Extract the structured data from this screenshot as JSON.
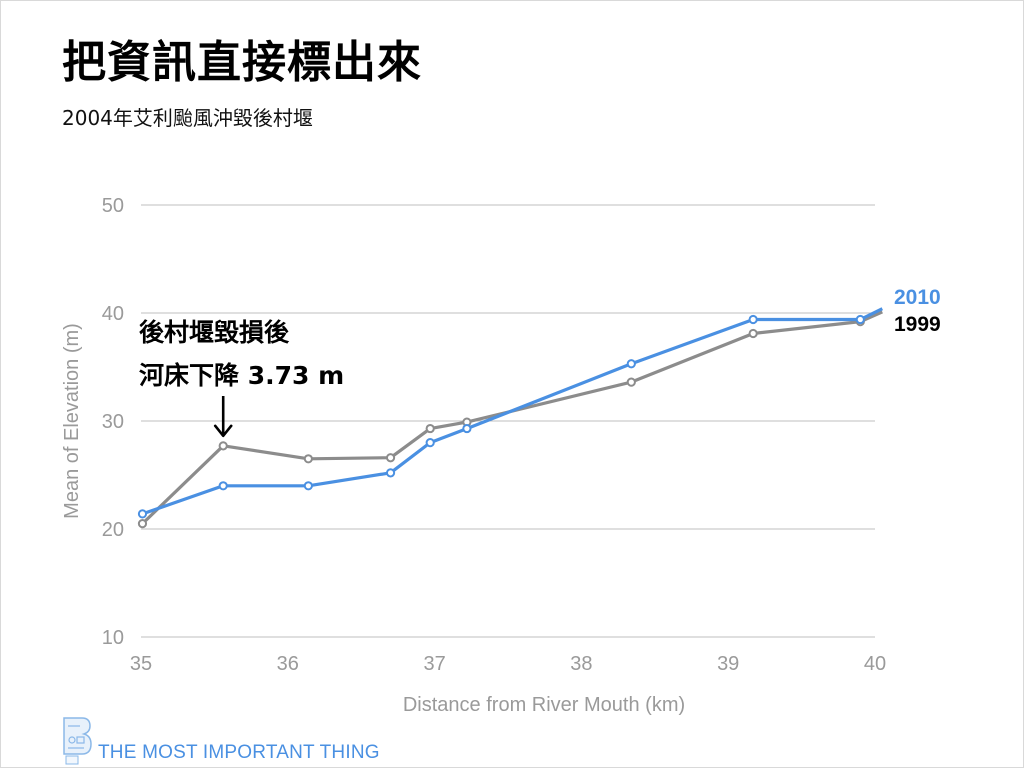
{
  "slide": {
    "title": "把資訊直接標出來",
    "subtitle": "2004年艾利颱風沖毀後村堰",
    "footer": "THE MOST IMPORTANT THING"
  },
  "colors": {
    "series_2010": "#4a90e2",
    "series_1999": "#8c8c8c",
    "gridline": "#bfbfbf",
    "axis_text": "#9a9a9a"
  },
  "chart_data": {
    "type": "line",
    "xlabel": "Distance from River Mouth (km)",
    "ylabel": "Mean of Elevation (m)",
    "xlim": [
      35,
      40
    ],
    "ylim": [
      10,
      50
    ],
    "xticks": [
      "35",
      "36",
      "37",
      "38",
      "39",
      "40"
    ],
    "yticks": [
      "10",
      "20",
      "30",
      "40",
      "50"
    ],
    "grid": "horizontal",
    "legend": "right, direct labels",
    "series": [
      {
        "name": "2010",
        "points": [
          [
            35.01,
            21.4
          ],
          [
            35.56,
            24.0
          ],
          [
            36.14,
            24.0
          ],
          [
            36.7,
            25.2
          ],
          [
            36.97,
            28.0
          ],
          [
            37.22,
            29.3
          ],
          [
            38.34,
            35.3
          ],
          [
            39.17,
            39.4
          ],
          [
            39.9,
            39.4
          ],
          [
            40.05,
            40.4
          ]
        ]
      },
      {
        "name": "1999",
        "points": [
          [
            35.01,
            20.5
          ],
          [
            35.56,
            27.7
          ],
          [
            36.14,
            26.5
          ],
          [
            36.7,
            26.6
          ],
          [
            36.97,
            29.3
          ],
          [
            37.22,
            29.9
          ],
          [
            38.34,
            33.6
          ],
          [
            39.17,
            38.1
          ],
          [
            39.9,
            39.2
          ],
          [
            40.05,
            40.1
          ]
        ]
      }
    ],
    "annotation": {
      "line1": "後村堰毀損後",
      "line2": "河床下降 3.73 m",
      "arrow_target": [
        35.56,
        27.7
      ]
    }
  }
}
